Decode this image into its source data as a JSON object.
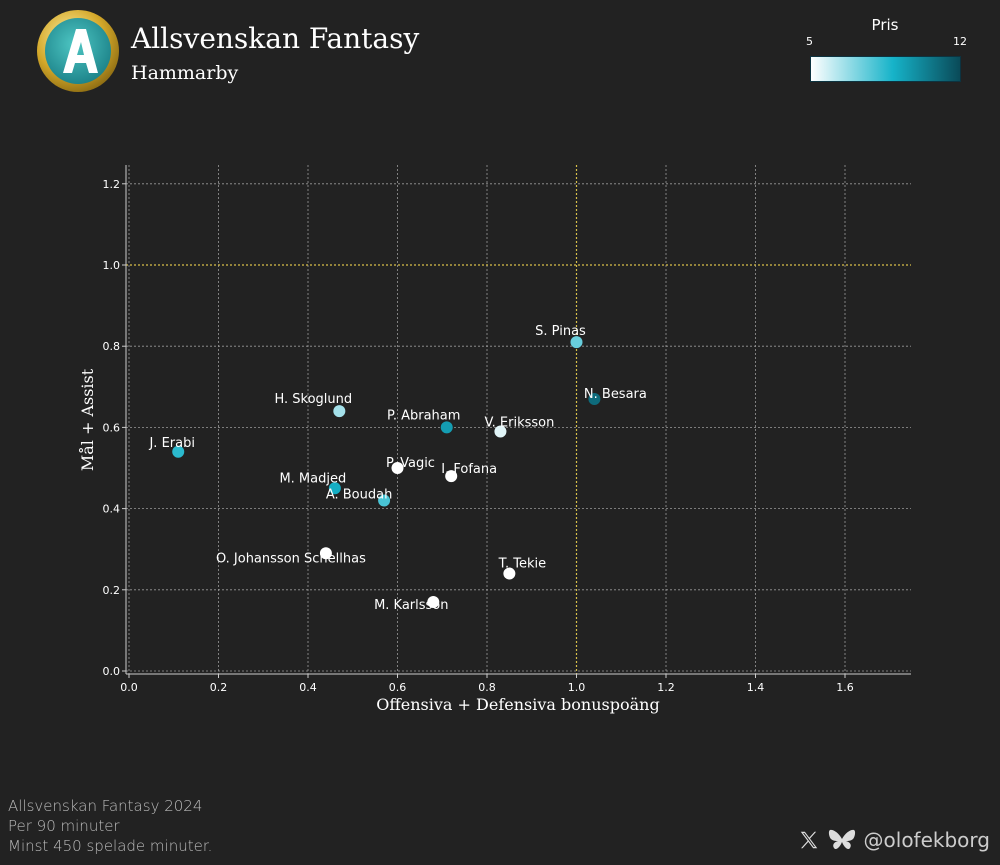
{
  "header": {
    "title": "Allsvenskan Fantasy",
    "subtitle": "Hammarby"
  },
  "colorbar": {
    "label": "Pris",
    "min_label": "5",
    "max_label": "12",
    "colors": [
      "#ffffff",
      "#16b3c9",
      "#0a4a58"
    ]
  },
  "chart_data": {
    "type": "scatter",
    "xlabel": "Offensiva + Defensiva bonuspoäng",
    "ylabel": "Mål + Assist",
    "xlim": [
      -0.02,
      1.75
    ],
    "ylim": [
      -0.02,
      1.26
    ],
    "xticks": [
      0.0,
      0.2,
      0.4,
      0.6,
      0.8,
      1.0,
      1.2,
      1.4,
      1.6
    ],
    "yticks": [
      0.0,
      0.2,
      0.4,
      0.6,
      0.8,
      1.0,
      1.2
    ],
    "grid": true,
    "reference_lines": {
      "x": 1.0,
      "y": 1.0,
      "color": "#d8c04a"
    },
    "color_scale": {
      "label": "Pris",
      "min": 5,
      "max": 12
    },
    "points": [
      {
        "name": "J. Erabi",
        "x": 0.11,
        "y": 0.54,
        "price": 8.5
      },
      {
        "name": "H. Skoglund",
        "x": 0.47,
        "y": 0.64,
        "price": 6.5
      },
      {
        "name": "P. Abraham",
        "x": 0.71,
        "y": 0.6,
        "price": 9.5
      },
      {
        "name": "V. Eriksson",
        "x": 0.83,
        "y": 0.59,
        "price": 5.5
      },
      {
        "name": "S. Pinas",
        "x": 1.0,
        "y": 0.81,
        "price": 7.5
      },
      {
        "name": "N. Besara",
        "x": 1.04,
        "y": 0.67,
        "price": 11.0
      },
      {
        "name": "P. Vagic",
        "x": 0.6,
        "y": 0.5,
        "price": 5.0
      },
      {
        "name": "I. Fofana",
        "x": 0.72,
        "y": 0.48,
        "price": 5.0
      },
      {
        "name": "M. Madjed",
        "x": 0.46,
        "y": 0.45,
        "price": 9.0
      },
      {
        "name": "A. Boudah",
        "x": 0.57,
        "y": 0.42,
        "price": 8.0
      },
      {
        "name": "O. Johansson Schellhas",
        "x": 0.44,
        "y": 0.29,
        "price": 5.0
      },
      {
        "name": "T. Tekie",
        "x": 0.85,
        "y": 0.24,
        "price": 5.0
      },
      {
        "name": "M. Karlsson",
        "x": 0.68,
        "y": 0.17,
        "price": 5.0
      }
    ]
  },
  "footer": {
    "lines": [
      "Allsvenskan Fantasy 2024",
      "Per 90 minuter",
      "Minst 450 spelade minuter."
    ],
    "handle": "@olofekborg"
  }
}
